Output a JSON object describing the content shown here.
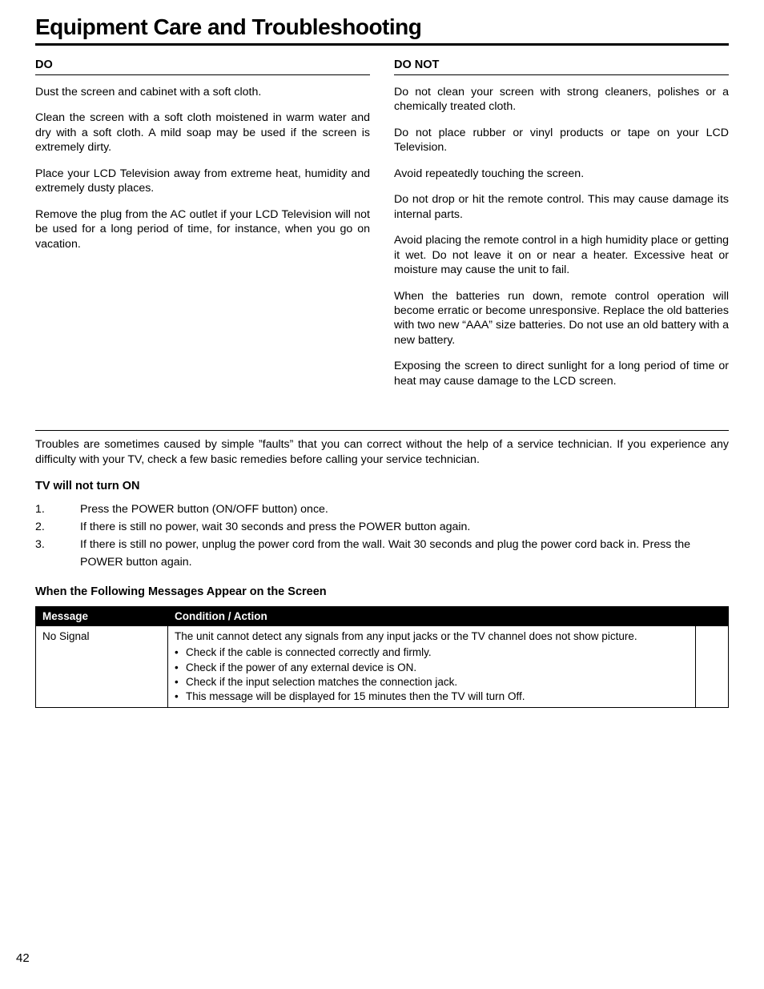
{
  "title": "Equipment Care and Troubleshooting",
  "do": {
    "header": "DO",
    "paras": [
      "Dust the screen and cabinet with a soft cloth.",
      "Clean the screen with a soft cloth moistened in warm water and dry with a soft cloth. A mild soap may be used if the screen is extremely dirty.",
      "Place your LCD Television away from extreme heat, humidity and extremely dusty places.",
      "Remove the plug from the AC outlet if your LCD Television will not be used for a long period of time, for instance, when you go on vacation."
    ]
  },
  "donot": {
    "header": "DO NOT",
    "paras": [
      "Do not clean your screen with strong cleaners, polishes or a chemically treated cloth.",
      "Do not place rubber or vinyl products or tape on your LCD Television.",
      "Avoid repeatedly touching the screen.",
      "Do not drop or hit the remote control. This may cause damage its internal parts.",
      "Avoid placing the remote control in a high humidity place or getting it wet. Do not leave it on or near a heater. Excessive heat or moisture may cause the unit to fail.",
      "When the batteries run down, remote control operation will become erratic or become unresponsive. Replace the old batteries with two new “AAA” size batteries. Do not use an old battery with a new battery.",
      "Exposing the screen to direct sunlight for a long period of time or heat may cause damage to the LCD screen."
    ]
  },
  "troubleshoot": {
    "intro": "Troubles are sometimes caused by simple ”faults” that you can correct without the help of a service technician. If you experience any difficulty with your TV, check a few basic remedies before calling your service technician.",
    "subheader": "TV will not turn ON",
    "steps": [
      "Press the POWER button (ON/OFF button) once.",
      "If there is still no power, wait 30 seconds and press the POWER button again.",
      "If there is still no power, unplug the power cord from the wall. Wait 30 seconds and plug the power cord back in. Press the POWER button again."
    ],
    "tableHeader": "When the Following Messages Appear on the Screen",
    "table": {
      "cols": [
        "Message",
        "Condition / Action"
      ],
      "row": {
        "message": "No Signal",
        "condition_lead": "The unit cannot detect any signals from any input jacks or the TV channel does not show picture.",
        "bullets": [
          "Check if the cable is connected correctly and firmly.",
          "Check if the power of any external device is ON.",
          "Check if the input selection matches the connection jack.",
          "This message will be displayed for 15 minutes then the TV will turn Off."
        ]
      }
    }
  },
  "pageNumber": "42"
}
